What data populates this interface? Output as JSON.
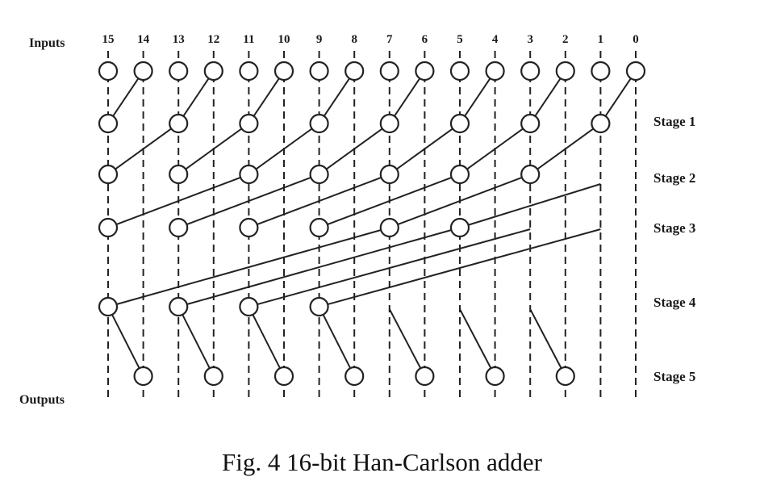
{
  "diagram": {
    "inputs_label": "Inputs",
    "outputs_label": "Outputs",
    "bit_labels": [
      "15",
      "14",
      "13",
      "12",
      "11",
      "10",
      "9",
      "8",
      "7",
      "6",
      "5",
      "4",
      "3",
      "2",
      "1",
      "0"
    ],
    "stage_labels": [
      "Stage 1",
      "Stage 2",
      "Stage 3",
      "Stage 4",
      "Stage 5"
    ],
    "stage_nodes": {
      "input_row": [
        0,
        1,
        2,
        3,
        4,
        5,
        6,
        7,
        8,
        9,
        10,
        11,
        12,
        13,
        14,
        15
      ],
      "stage_1": [
        15,
        13,
        11,
        9,
        7,
        5,
        3,
        1
      ],
      "stage_2": [
        15,
        13,
        11,
        9,
        7,
        5,
        3
      ],
      "stage_3": [
        15,
        13,
        11,
        9,
        7,
        5
      ],
      "stage_4": [
        15,
        13,
        11,
        9
      ],
      "stage_5": [
        14,
        12,
        10,
        8,
        6,
        4,
        2
      ]
    },
    "line_color": "#222222"
  },
  "caption": "Fig. 4 16-bit Han-Carlson adder"
}
